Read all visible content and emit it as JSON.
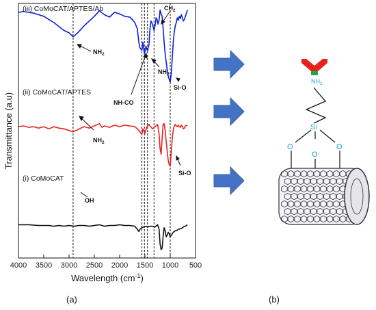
{
  "chart_data": {
    "type": "line",
    "title": "",
    "xlabel": "Wavelength (cm",
    "xlabel_sup": "-1",
    "xlabel_close": ")",
    "ylabel": "Transmittance (a.u)",
    "xlim": [
      4000,
      500
    ],
    "x_ticks": [
      "4000",
      "3500",
      "3000",
      "2500",
      "2000",
      "1500",
      "1000",
      "500"
    ],
    "y_ticks": "none",
    "grid": false,
    "legend": "none",
    "series": [
      {
        "name": "(iii) CoMoCAT/APTES/Ab",
        "color": "#0b1fd9",
        "x": [
          4000,
          3900,
          3800,
          3700,
          3600,
          3500,
          3400,
          3300,
          3200,
          3100,
          3000,
          2920,
          2880,
          2800,
          2700,
          2600,
          2500,
          2400,
          2300,
          2200,
          2100,
          2000,
          1900,
          1800,
          1750,
          1700,
          1650,
          1620,
          1600,
          1560,
          1540,
          1510,
          1480,
          1450,
          1420,
          1400,
          1380,
          1350,
          1320,
          1300,
          1280,
          1260,
          1240,
          1220,
          1200,
          1180,
          1160,
          1140,
          1120,
          1100,
          1080,
          1060,
          1040,
          1020,
          1000,
          980,
          960,
          940,
          920,
          900,
          880,
          860,
          840,
          820,
          800,
          780,
          760,
          740,
          720,
          700,
          680,
          660
        ],
        "y": [
          0.93,
          0.94,
          0.93,
          0.92,
          0.9,
          0.88,
          0.84,
          0.8,
          0.75,
          0.7,
          0.67,
          0.62,
          0.64,
          0.69,
          0.76,
          0.82,
          0.88,
          0.95,
          0.9,
          0.87,
          0.93,
          0.91,
          0.88,
          0.87,
          0.84,
          0.8,
          0.72,
          0.55,
          0.48,
          0.45,
          0.55,
          0.4,
          0.5,
          0.44,
          0.52,
          0.72,
          0.82,
          0.78,
          0.7,
          0.76,
          0.86,
          0.84,
          0.78,
          0.83,
          0.96,
          0.91,
          0.88,
          0.73,
          0.55,
          0.4,
          0.3,
          0.2,
          0.12,
          0.08,
          0.04,
          0.15,
          0.35,
          0.55,
          0.68,
          0.76,
          0.8,
          0.86,
          0.83,
          0.88,
          0.85,
          0.9,
          0.86,
          0.82,
          0.84,
          0.88,
          0.92,
          0.96
        ]
      },
      {
        "name": "(ii) CoMoCAT/APTES",
        "color": "#e8211c",
        "x": [
          4000,
          3900,
          3800,
          3700,
          3600,
          3500,
          3400,
          3300,
          3200,
          3100,
          3000,
          2920,
          2850,
          2800,
          2700,
          2600,
          2500,
          2400,
          2350,
          2300,
          2200,
          2100,
          2000,
          1900,
          1800,
          1700,
          1650,
          1600,
          1560,
          1540,
          1500,
          1460,
          1420,
          1400,
          1350,
          1300,
          1250,
          1220,
          1200,
          1180,
          1160,
          1140,
          1120,
          1100,
          1080,
          1060,
          1040,
          1020,
          1000,
          980,
          960,
          940,
          920,
          900,
          880,
          860,
          840,
          820,
          800,
          780,
          760,
          740,
          720,
          700,
          680,
          660
        ],
        "y": [
          0.55,
          0.56,
          0.54,
          0.55,
          0.53,
          0.55,
          0.52,
          0.55,
          0.53,
          0.52,
          0.5,
          0.48,
          0.5,
          0.52,
          0.55,
          0.53,
          0.56,
          0.59,
          0.54,
          0.56,
          0.54,
          0.57,
          0.55,
          0.57,
          0.56,
          0.55,
          0.52,
          0.48,
          0.45,
          0.52,
          0.46,
          0.55,
          0.58,
          0.56,
          0.52,
          0.55,
          0.58,
          0.45,
          0.25,
          0.18,
          0.4,
          0.58,
          0.59,
          0.5,
          0.35,
          0.22,
          0.1,
          0.04,
          0.02,
          0.2,
          0.4,
          0.5,
          0.56,
          0.58,
          0.56,
          0.55,
          0.57,
          0.55,
          0.54,
          0.57,
          0.55,
          0.52,
          0.53,
          0.56,
          0.57,
          0.56
        ]
      },
      {
        "name": "(i) CoMoCAT",
        "color": "#111111",
        "x": [
          4000,
          3800,
          3600,
          3400,
          3300,
          3200,
          3100,
          3000,
          2900,
          2800,
          2700,
          2600,
          2500,
          2400,
          2300,
          2200,
          2100,
          2000,
          1900,
          1800,
          1700,
          1650,
          1620,
          1600,
          1560,
          1500,
          1450,
          1400,
          1350,
          1300,
          1250,
          1220,
          1200,
          1180,
          1160,
          1140,
          1120,
          1100,
          1080,
          1060,
          1040,
          1020,
          1000,
          980,
          960,
          940,
          920,
          900,
          880,
          860,
          840,
          820,
          800,
          780,
          760,
          740,
          720,
          700,
          680,
          660
        ],
        "y": [
          0.36,
          0.36,
          0.35,
          0.35,
          0.34,
          0.35,
          0.34,
          0.35,
          0.34,
          0.35,
          0.35,
          0.34,
          0.35,
          0.36,
          0.34,
          0.35,
          0.35,
          0.36,
          0.35,
          0.35,
          0.34,
          0.3,
          0.27,
          0.3,
          0.32,
          0.34,
          0.33,
          0.34,
          0.34,
          0.33,
          0.36,
          0.3,
          0.1,
          0.03,
          0.05,
          0.2,
          0.32,
          0.28,
          0.2,
          0.22,
          0.26,
          0.24,
          0.2,
          0.22,
          0.24,
          0.26,
          0.27,
          0.28,
          0.28,
          0.29,
          0.3,
          0.3,
          0.31,
          0.31,
          0.32,
          0.33,
          0.34,
          0.34,
          0.35,
          0.36
        ]
      }
    ],
    "reference_lines_x": [
      2920,
      1560,
      1510,
      1450,
      1320,
      1000
    ],
    "annotations": [
      "NH",
      "NH-CO",
      "NH",
      "CH",
      "Si-O",
      "NH",
      "Si-O",
      "OH"
    ],
    "annotation_subscripts": [
      "2",
      "2",
      "2",
      "2"
    ]
  },
  "panel_labels": [
    "(a)",
    "(b)"
  ],
  "schematic": {
    "atoms": [
      "Si",
      "O",
      "O",
      "O"
    ],
    "amine_label": "NH",
    "amine_subscript": "2",
    "colors": {
      "antibody_top": "#e8211c",
      "antibody_base": "#1aa84a",
      "atom_text": "#1a9fd9",
      "arrow": "#4472c4",
      "nanotube": "#2e2e3a"
    }
  }
}
